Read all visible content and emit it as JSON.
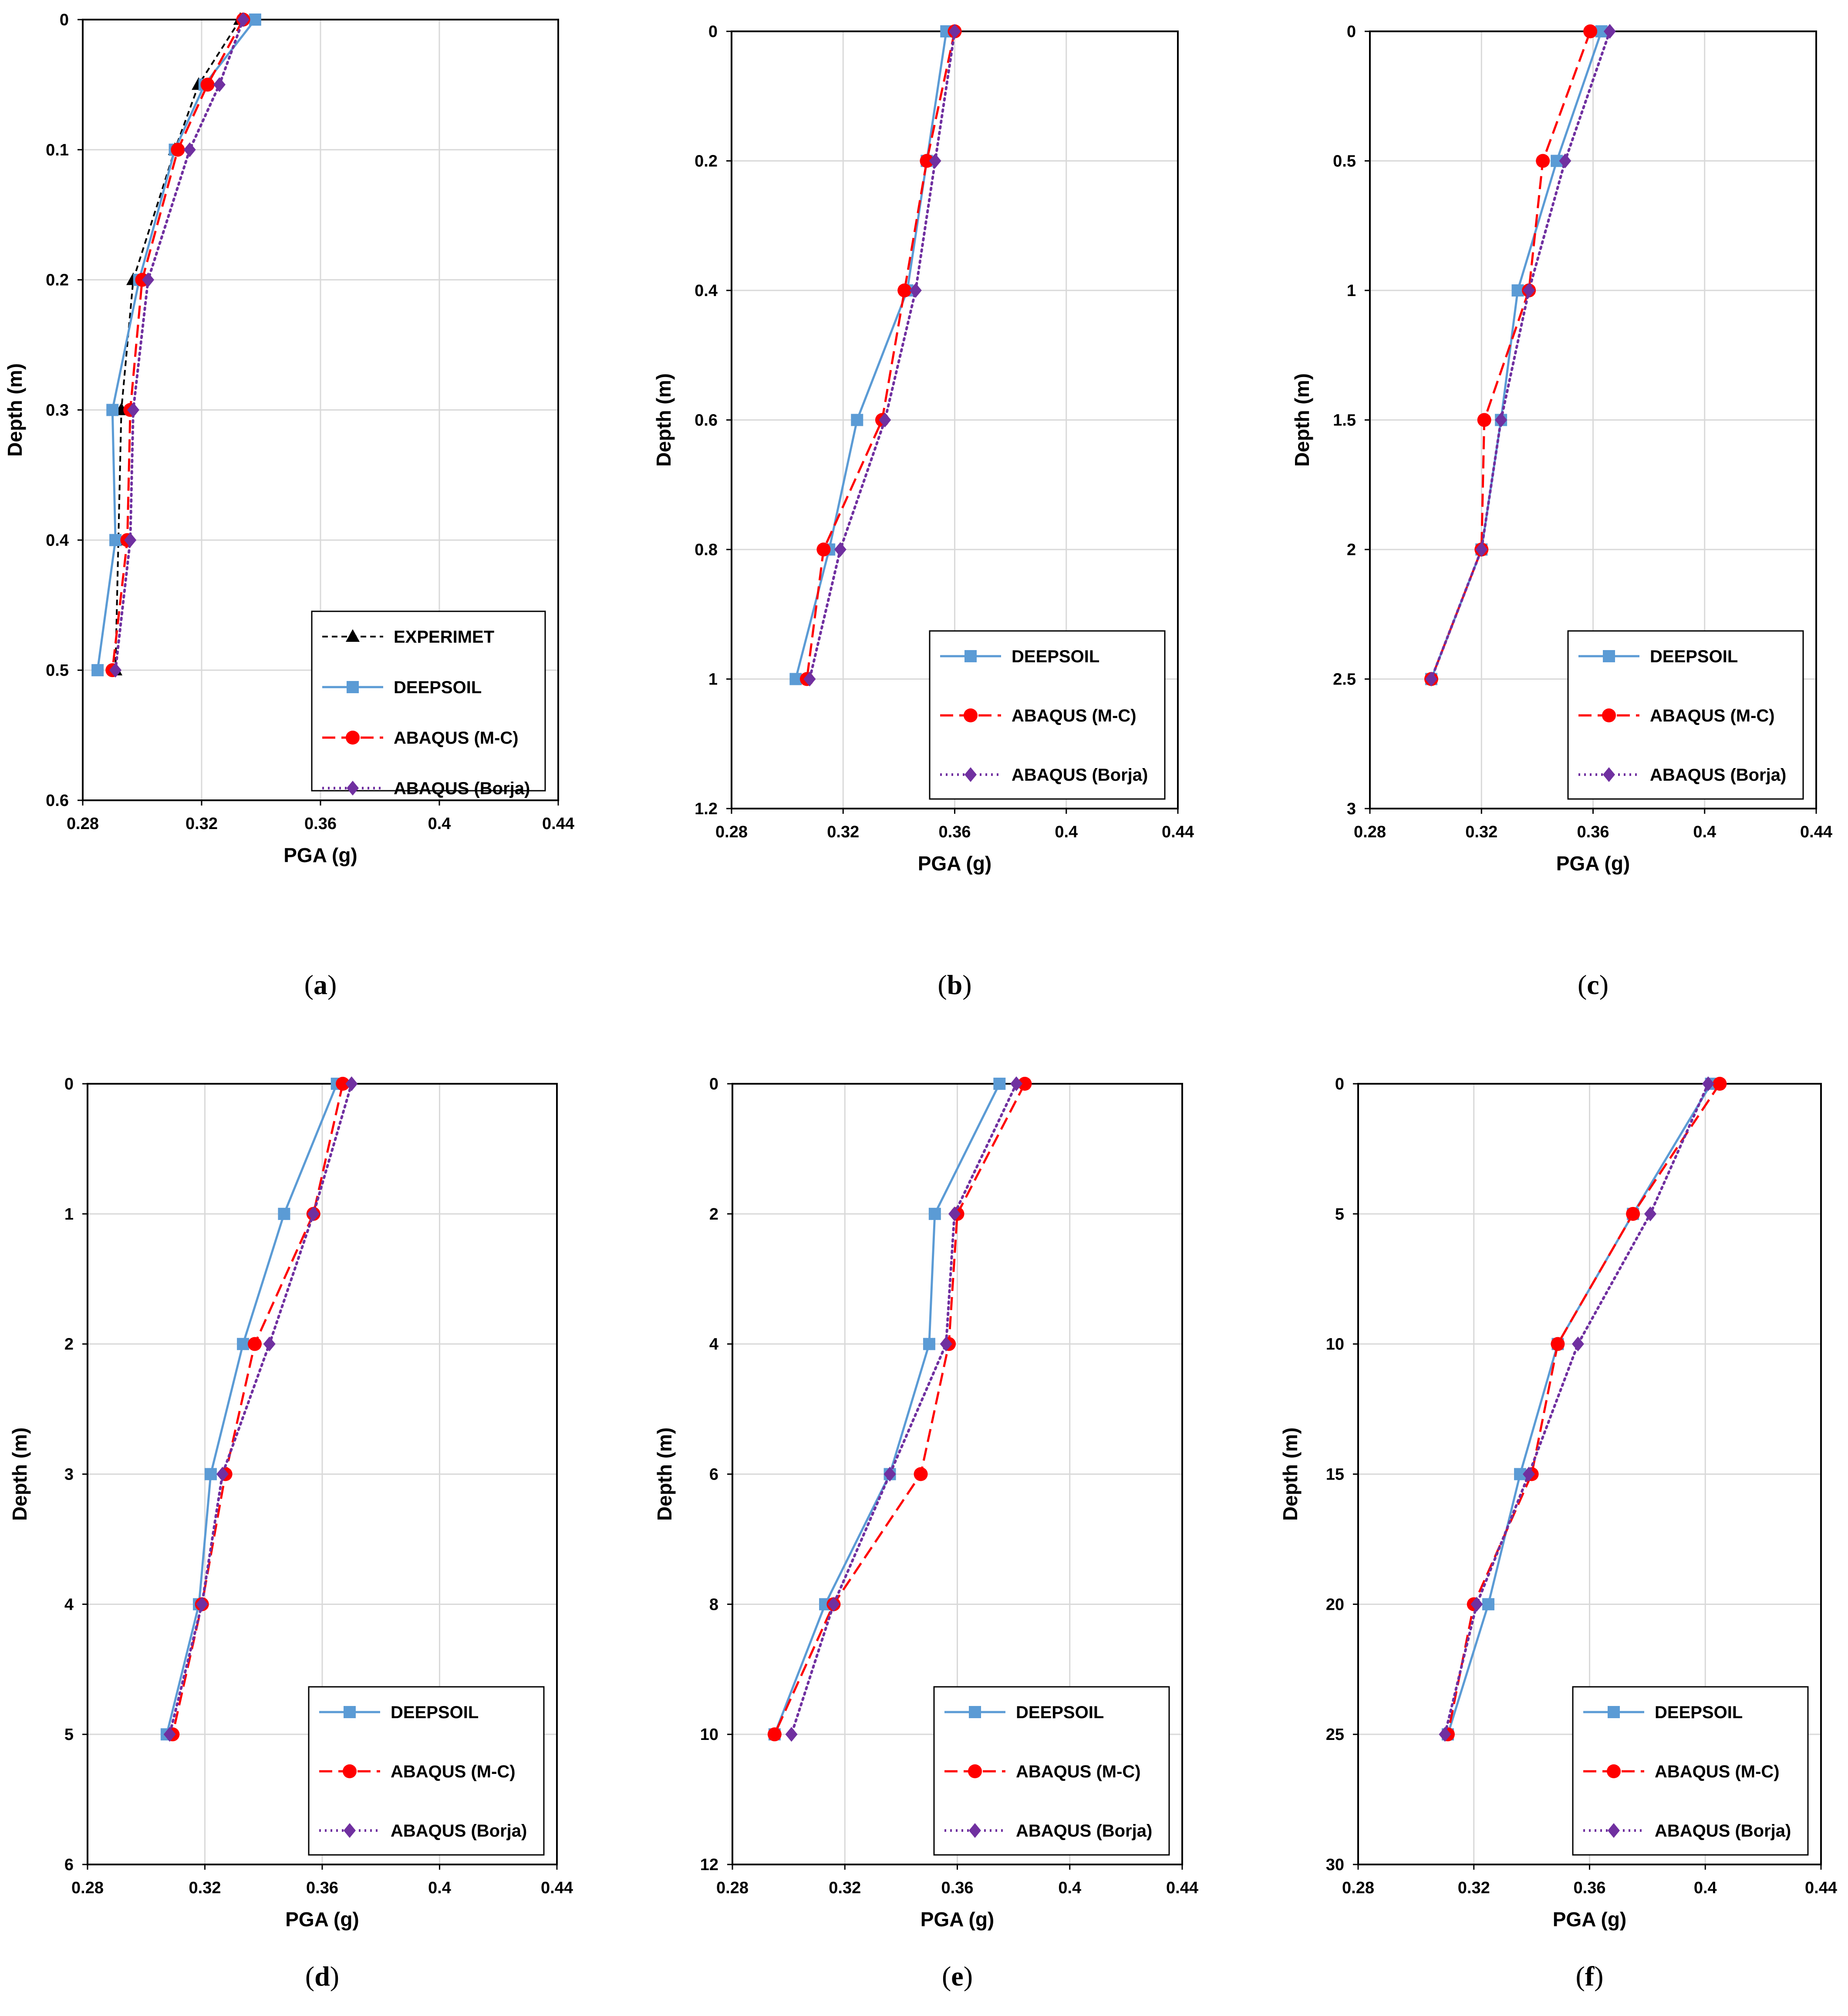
{
  "colors": {
    "EXPERIMET": "#000000",
    "DEEPSOIL": "#5b9bd5",
    "ABAQUS (M-C)": "#ff0000",
    "ABAQUS (Borja)": "#7030a0"
  },
  "chart_data": [
    {
      "id": "a",
      "caption_letter": "a",
      "type": "line",
      "xlabel": "PGA (g)",
      "ylabel": "Depth (m)",
      "xlim": [
        0.28,
        0.44
      ],
      "ylim": [
        0,
        0.6
      ],
      "y_inverted": true,
      "xticks": [
        "0.28",
        "0.32",
        "0.36",
        "0.4",
        "0.44"
      ],
      "yticks": [
        "0",
        "0.1",
        "0.2",
        "0.3",
        "0.4",
        "0.5",
        "0.6"
      ],
      "legend_position": "bottom-right",
      "series": [
        {
          "name": "EXPERIMET",
          "style": "black-dashed-triangle",
          "depth": [
            0,
            0.05,
            0.1,
            0.2,
            0.3,
            0.4,
            0.5
          ],
          "pga": [
            0.333,
            0.319,
            0.311,
            0.297,
            0.293,
            0.292,
            0.291
          ]
        },
        {
          "name": "DEEPSOIL",
          "style": "blue-solid-square",
          "depth": [
            0,
            0.05,
            0.1,
            0.2,
            0.3,
            0.4,
            0.5
          ],
          "pga": [
            0.338,
            0.321,
            0.311,
            0.299,
            0.29,
            0.291,
            0.285
          ]
        },
        {
          "name": "ABAQUS (M-C)",
          "style": "red-dashed-circle",
          "depth": [
            0,
            0.05,
            0.1,
            0.2,
            0.3,
            0.4,
            0.5
          ],
          "pga": [
            0.334,
            0.322,
            0.312,
            0.3,
            0.296,
            0.295,
            0.29
          ]
        },
        {
          "name": "ABAQUS (Borja)",
          "style": "purple-dotted-diamond",
          "depth": [
            0,
            0.05,
            0.1,
            0.2,
            0.3,
            0.4,
            0.5
          ],
          "pga": [
            0.334,
            0.326,
            0.316,
            0.302,
            0.297,
            0.296,
            0.291
          ]
        }
      ]
    },
    {
      "id": "b",
      "caption_letter": "b",
      "type": "line",
      "xlabel": "PGA (g)",
      "ylabel": "Depth (m)",
      "xlim": [
        0.28,
        0.44
      ],
      "ylim": [
        0,
        1.2
      ],
      "y_inverted": true,
      "xticks": [
        "0.28",
        "0.32",
        "0.36",
        "0.4",
        "0.44"
      ],
      "yticks": [
        "0",
        "0.2",
        "0.4",
        "0.6",
        "0.8",
        "1",
        "1.2"
      ],
      "legend_position": "bottom-right",
      "series": [
        {
          "name": "DEEPSOIL",
          "style": "blue-solid-square",
          "depth": [
            0,
            0.2,
            0.4,
            0.6,
            0.8,
            1.0
          ],
          "pga": [
            0.357,
            0.35,
            0.343,
            0.325,
            0.315,
            0.303
          ]
        },
        {
          "name": "ABAQUS (M-C)",
          "style": "red-dashed-circle",
          "depth": [
            0,
            0.2,
            0.4,
            0.6,
            0.8,
            1.0
          ],
          "pga": [
            0.36,
            0.35,
            0.342,
            0.334,
            0.313,
            0.307
          ]
        },
        {
          "name": "ABAQUS (Borja)",
          "style": "purple-dotted-diamond",
          "depth": [
            0,
            0.2,
            0.4,
            0.6,
            0.8,
            1.0
          ],
          "pga": [
            0.36,
            0.353,
            0.346,
            0.335,
            0.319,
            0.308
          ]
        }
      ]
    },
    {
      "id": "c",
      "caption_letter": "c",
      "type": "line",
      "xlabel": "PGA (g)",
      "ylabel": "Depth (m)",
      "xlim": [
        0.28,
        0.44
      ],
      "ylim": [
        0,
        3
      ],
      "y_inverted": true,
      "xticks": [
        "0.28",
        "0.32",
        "0.36",
        "0.4",
        "0.44"
      ],
      "yticks": [
        "0",
        "0.5",
        "1",
        "1.5",
        "2",
        "2.5",
        "3"
      ],
      "legend_position": "bottom-right",
      "series": [
        {
          "name": "DEEPSOIL",
          "style": "blue-solid-square",
          "depth": [
            0,
            0.5,
            1.0,
            1.5,
            2.0,
            2.5
          ],
          "pga": [
            0.363,
            0.347,
            0.333,
            0.327,
            0.32,
            0.302
          ]
        },
        {
          "name": "ABAQUS (M-C)",
          "style": "red-dashed-circle",
          "depth": [
            0,
            0.5,
            1.0,
            1.5,
            2.0,
            2.5
          ],
          "pga": [
            0.359,
            0.342,
            0.337,
            0.321,
            0.32,
            0.302
          ]
        },
        {
          "name": "ABAQUS (Borja)",
          "style": "purple-dotted-diamond",
          "depth": [
            0,
            0.5,
            1.0,
            1.5,
            2.0,
            2.5
          ],
          "pga": [
            0.366,
            0.35,
            0.337,
            0.327,
            0.32,
            0.302
          ]
        }
      ]
    },
    {
      "id": "d",
      "caption_letter": "d",
      "type": "line",
      "xlabel": "PGA (g)",
      "ylabel": "Depth (m)",
      "xlim": [
        0.28,
        0.44
      ],
      "ylim": [
        0,
        6
      ],
      "y_inverted": true,
      "xticks": [
        "0.28",
        "0.32",
        "0.36",
        "0.4",
        "0.44"
      ],
      "yticks": [
        "0",
        "1",
        "2",
        "3",
        "4",
        "5",
        "6"
      ],
      "legend_position": "bottom-right",
      "series": [
        {
          "name": "DEEPSOIL",
          "style": "blue-solid-square",
          "depth": [
            0,
            1,
            2,
            3,
            4,
            5
          ],
          "pga": [
            0.365,
            0.347,
            0.333,
            0.322,
            0.318,
            0.307
          ]
        },
        {
          "name": "ABAQUS (M-C)",
          "style": "red-dashed-circle",
          "depth": [
            0,
            1,
            2,
            3,
            4,
            5
          ],
          "pga": [
            0.367,
            0.357,
            0.337,
            0.327,
            0.319,
            0.309
          ]
        },
        {
          "name": "ABAQUS (Borja)",
          "style": "purple-dotted-diamond",
          "depth": [
            0,
            1,
            2,
            3,
            4,
            5
          ],
          "pga": [
            0.37,
            0.357,
            0.342,
            0.326,
            0.319,
            0.308
          ]
        }
      ]
    },
    {
      "id": "e",
      "caption_letter": "e",
      "type": "line",
      "xlabel": "PGA (g)",
      "ylabel": "Depth (m)",
      "xlim": [
        0.28,
        0.44
      ],
      "ylim": [
        0,
        12
      ],
      "y_inverted": true,
      "xticks": [
        "0.28",
        "0.32",
        "0.36",
        "0.4",
        "0.44"
      ],
      "yticks": [
        "0",
        "2",
        "4",
        "6",
        "8",
        "10",
        "12"
      ],
      "legend_position": "bottom-right",
      "series": [
        {
          "name": "DEEPSOIL",
          "style": "blue-solid-square",
          "depth": [
            0,
            2,
            4,
            6,
            8,
            10
          ],
          "pga": [
            0.375,
            0.352,
            0.35,
            0.336,
            0.313,
            0.295
          ]
        },
        {
          "name": "ABAQUS (M-C)",
          "style": "red-dashed-circle",
          "depth": [
            0,
            2,
            4,
            6,
            8,
            10
          ],
          "pga": [
            0.384,
            0.36,
            0.357,
            0.347,
            0.316,
            0.295
          ]
        },
        {
          "name": "ABAQUS (Borja)",
          "style": "purple-dotted-diamond",
          "depth": [
            0,
            2,
            4,
            6,
            8,
            10
          ],
          "pga": [
            0.381,
            0.359,
            0.356,
            0.336,
            0.316,
            0.301
          ]
        }
      ]
    },
    {
      "id": "f",
      "caption_letter": "f",
      "type": "line",
      "xlabel": "PGA (g)",
      "ylabel": "Depth (m)",
      "xlim": [
        0.28,
        0.44
      ],
      "ylim": [
        0,
        30
      ],
      "y_inverted": true,
      "xticks": [
        "0.28",
        "0.32",
        "0.36",
        "0.4",
        "0.44"
      ],
      "yticks": [
        "0",
        "5",
        "10",
        "15",
        "20",
        "25",
        "30"
      ],
      "legend_position": "bottom-right",
      "series": [
        {
          "name": "DEEPSOIL",
          "style": "blue-solid-square",
          "depth": [
            0,
            5,
            10,
            15,
            20,
            25
          ],
          "pga": [
            0.402,
            0.375,
            0.349,
            0.336,
            0.325,
            0.311
          ]
        },
        {
          "name": "ABAQUS (M-C)",
          "style": "red-dashed-circle",
          "depth": [
            0,
            5,
            10,
            15,
            20,
            25
          ],
          "pga": [
            0.405,
            0.375,
            0.349,
            0.34,
            0.32,
            0.311
          ]
        },
        {
          "name": "ABAQUS (Borja)",
          "style": "purple-dotted-diamond",
          "depth": [
            0,
            5,
            10,
            15,
            20,
            25
          ],
          "pga": [
            0.401,
            0.381,
            0.356,
            0.339,
            0.321,
            0.31
          ]
        }
      ]
    }
  ]
}
